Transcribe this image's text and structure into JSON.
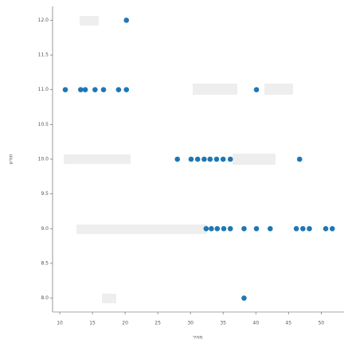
{
  "chart_data": {
    "type": "scatter",
    "x_label": "מחיר",
    "y_label": "חודש",
    "xlim": [
      8.9,
      53.5
    ],
    "ylim": [
      7.8,
      12.2
    ],
    "xticks": [
      10,
      15,
      20,
      25,
      30,
      35,
      40,
      45,
      50
    ],
    "yticks": [
      {
        "value": 8,
        "label": "8.0"
      },
      {
        "value": 8.5,
        "label": "8.5"
      },
      {
        "value": 9,
        "label": "9.0"
      },
      {
        "value": 9.5,
        "label": "9.5"
      },
      {
        "value": 10,
        "label": "10.0"
      },
      {
        "value": 10.5,
        "label": "10.5"
      },
      {
        "value": 11,
        "label": "11.0"
      },
      {
        "value": 11.5,
        "label": "11.5"
      },
      {
        "value": 12,
        "label": "12.0"
      }
    ],
    "series": [
      {
        "color": "#1f77b4",
        "x": [
          20.2,
          10.85,
          13.2,
          13.9,
          15.4,
          16.7,
          19.0,
          20.2,
          40.1,
          28.0,
          30.1,
          31.1,
          32.1,
          33.0,
          34.0,
          35.0,
          36.1,
          46.7,
          32.4,
          33.2,
          34.1,
          35.1,
          36.1,
          38.2,
          40.1,
          42.2,
          46.2,
          47.2,
          48.2,
          50.7,
          51.7,
          38.2
        ],
        "values": [
          12,
          11,
          11,
          11,
          11,
          11,
          11,
          11,
          11,
          10,
          10,
          10,
          10,
          10,
          10,
          10,
          10,
          10,
          9,
          9,
          9,
          9,
          9,
          9,
          9,
          9,
          9,
          9,
          9,
          9,
          9,
          8
        ]
      }
    ]
  }
}
